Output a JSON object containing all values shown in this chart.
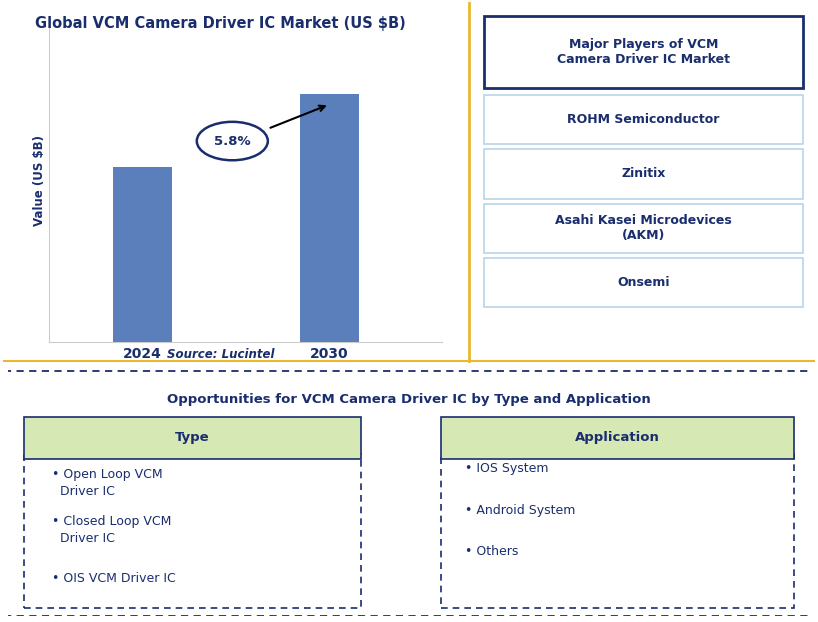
{
  "title": "Global VCM Camera Driver IC Market (US $B)",
  "source": "Source: Lucintel",
  "bar_years": [
    "2024",
    "2030"
  ],
  "bar_values": [
    1.0,
    1.42
  ],
  "bar_color": "#5b7fba",
  "ylabel": "Value (US $B)",
  "cagr_label": "5.8%",
  "right_panel_title": "Major Players of VCM\nCamera Driver IC Market",
  "right_panel_players": [
    "ROHM Semiconductor",
    "Zinitix",
    "Asahi Kasei Microdevices\n(AKM)",
    "Onsemi"
  ],
  "bottom_title": "Opportunities for VCM Camera Driver IC by Type and Application",
  "type_header": "Type",
  "type_items": [
    "• Open Loop VCM\n  Driver IC",
    "• Closed Loop VCM\n  Driver IC",
    "• OIS VCM Driver IC"
  ],
  "app_header": "Application",
  "app_items": [
    "• IOS System",
    "• Android System",
    "• Others"
  ],
  "header_bg_color": "#d6e8b4",
  "text_color": "#1a2e6e",
  "title_box_border": "#1a2e6e",
  "player_box_border": "#b8d4e8",
  "divider_color": "#e8b830",
  "dashed_border_color": "#1a2e6e",
  "background_color": "#ffffff",
  "fig_width": 8.18,
  "fig_height": 6.22,
  "dpi": 100
}
